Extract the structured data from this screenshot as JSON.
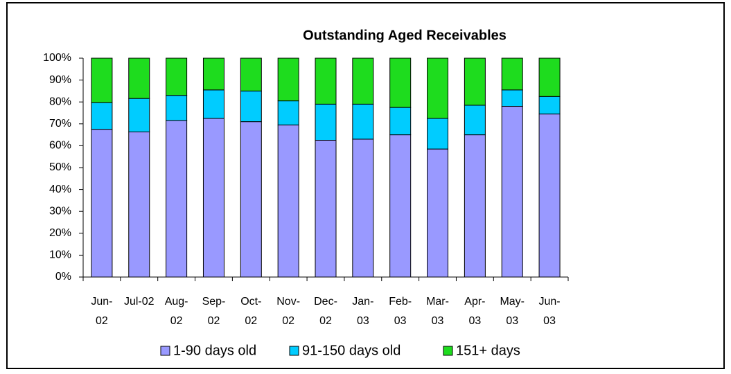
{
  "chart_data": {
    "type": "bar",
    "stacked": true,
    "title": "Outstanding Aged Receivables",
    "categories": [
      "Jun-02",
      "Jul-02",
      "Aug-02",
      "Sep-02",
      "Oct-02",
      "Nov-02",
      "Dec-02",
      "Jan-03",
      "Feb-03",
      "Mar-03",
      "Apr-03",
      "May-03",
      "Jun-03"
    ],
    "series": [
      {
        "name": "1-90 days old",
        "color": "#9999ff",
        "values": [
          67.5,
          66.3,
          71.5,
          72.5,
          71,
          69.5,
          62.5,
          63,
          65,
          58.5,
          65,
          78,
          74.5
        ]
      },
      {
        "name": "91-150 days old",
        "color": "#00ccff",
        "values": [
          12.2,
          15.3,
          11.5,
          13,
          14,
          11,
          16.5,
          16,
          12.5,
          14,
          13.5,
          7.5,
          8
        ]
      },
      {
        "name": "151+ days",
        "color": "#1edc1e",
        "values": [
          20.3,
          18.4,
          17,
          14.5,
          15,
          19.5,
          21,
          21,
          22.5,
          27.5,
          21.5,
          14.5,
          17.5
        ]
      }
    ],
    "ylim": [
      0,
      100
    ],
    "yticks": [
      {
        "value": 0,
        "label": "0%"
      },
      {
        "value": 10,
        "label": "10%"
      },
      {
        "value": 20,
        "label": "20%"
      },
      {
        "value": 30,
        "label": "30%"
      },
      {
        "value": 40,
        "label": "40%"
      },
      {
        "value": 50,
        "label": "50%"
      },
      {
        "value": 60,
        "label": "60%"
      },
      {
        "value": 70,
        "label": "70%"
      },
      {
        "value": 80,
        "label": "80%"
      },
      {
        "value": 90,
        "label": "90%"
      },
      {
        "value": 100,
        "label": "100%"
      }
    ],
    "legend": "bottom"
  }
}
